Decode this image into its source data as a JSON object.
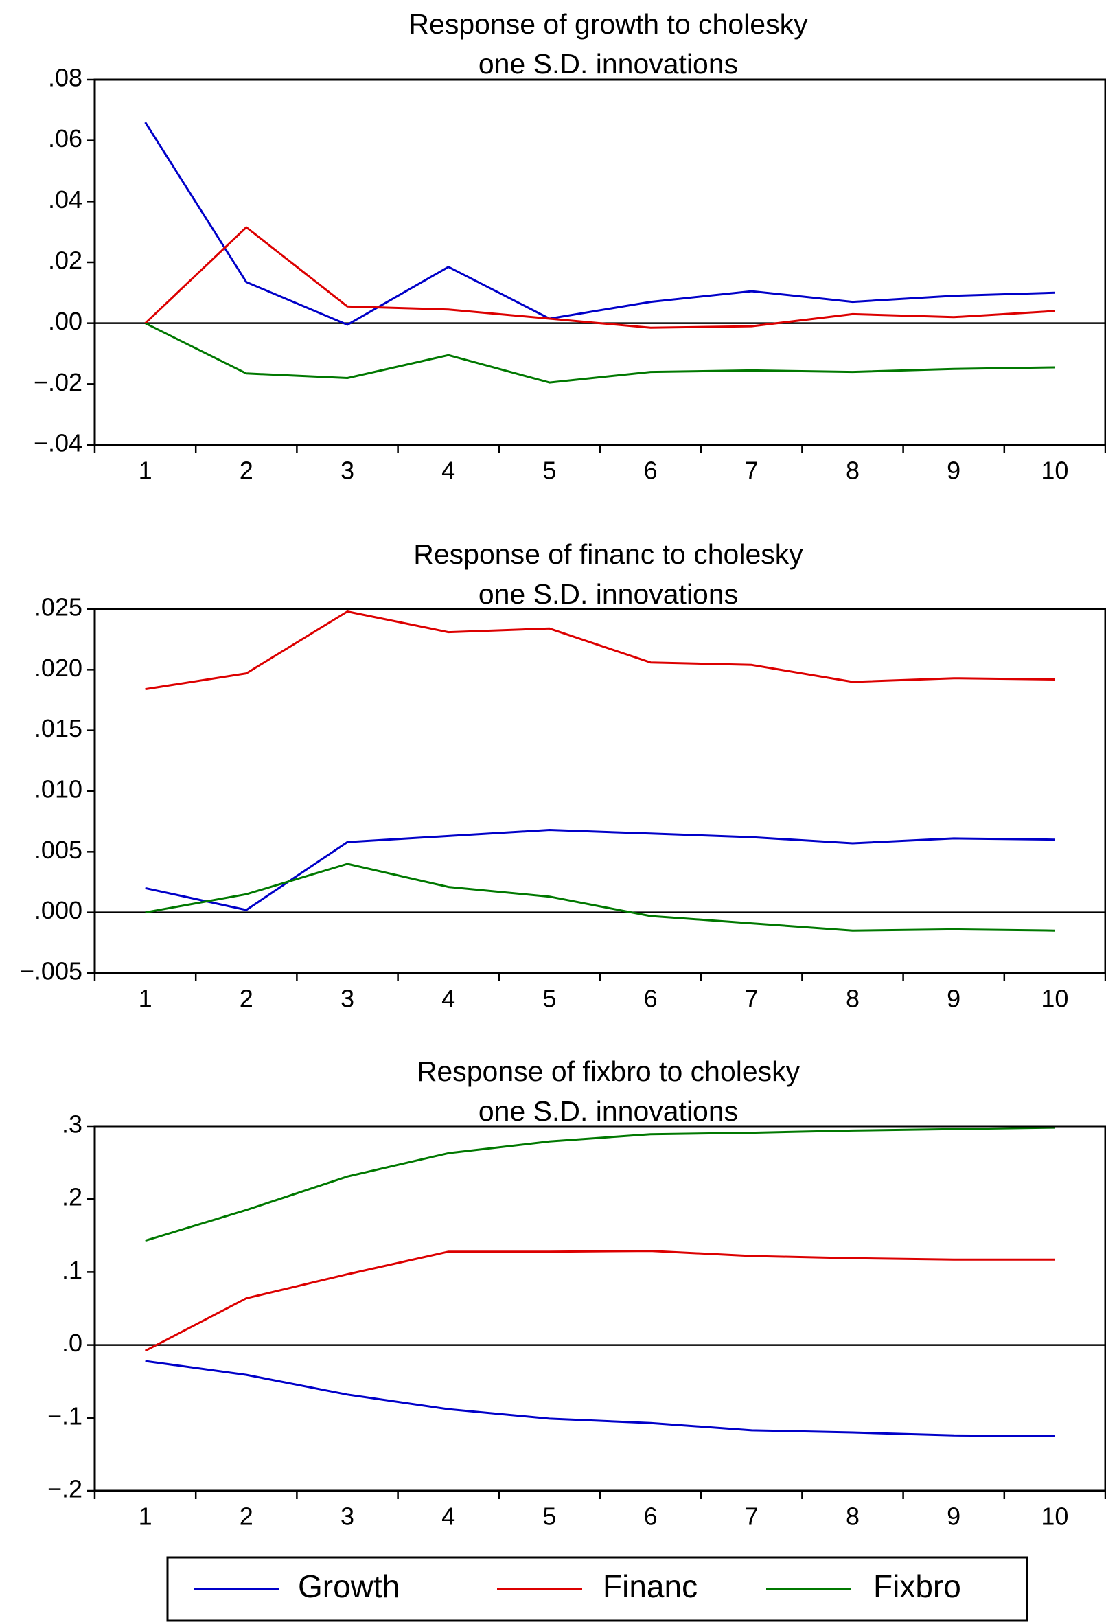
{
  "colors": {
    "Growth": "#0000c8",
    "Financ": "#dc0000",
    "Fixbro": "#007800",
    "axis": "#000000"
  },
  "legend": {
    "placement": "bottom",
    "entries": [
      "Growth",
      "Financ",
      "Fixbro"
    ]
  },
  "chart_data": [
    {
      "type": "line",
      "title_lines": [
        "Response of growth to cholesky",
        "one S.D. innovations"
      ],
      "x": [
        1,
        2,
        3,
        4,
        5,
        6,
        7,
        8,
        9,
        10
      ],
      "ylim": [
        -0.04,
        0.08
      ],
      "yticks": [
        -0.04,
        -0.02,
        0.0,
        0.02,
        0.04,
        0.06,
        0.08
      ],
      "ytick_labels": [
        "−.04",
        "−.02",
        ".00",
        ".02",
        ".04",
        ".06",
        ".08"
      ],
      "zero_line": true,
      "series": [
        {
          "name": "Growth",
          "values": [
            0.066,
            0.0135,
            -0.0005,
            0.0185,
            0.0015,
            0.007,
            0.0105,
            0.007,
            0.009,
            0.01
          ]
        },
        {
          "name": "Financ",
          "values": [
            0.0,
            0.0315,
            0.0055,
            0.0045,
            0.0015,
            -0.0015,
            -0.001,
            0.003,
            0.002,
            0.004
          ]
        },
        {
          "name": "Fixbro",
          "values": [
            0.0,
            -0.0165,
            -0.018,
            -0.0105,
            -0.0195,
            -0.016,
            -0.0155,
            -0.016,
            -0.015,
            -0.0145
          ]
        }
      ]
    },
    {
      "type": "line",
      "title_lines": [
        "Response of financ to cholesky",
        "one S.D. innovations"
      ],
      "x": [
        1,
        2,
        3,
        4,
        5,
        6,
        7,
        8,
        9,
        10
      ],
      "ylim": [
        -0.005,
        0.025
      ],
      "yticks": [
        -0.005,
        0.0,
        0.005,
        0.01,
        0.015,
        0.02,
        0.025
      ],
      "ytick_labels": [
        "−.005",
        ".000",
        ".005",
        ".010",
        ".015",
        ".020",
        ".025"
      ],
      "zero_line": true,
      "series": [
        {
          "name": "Growth",
          "values": [
            0.002,
            0.0002,
            0.0058,
            0.0063,
            0.0068,
            0.0065,
            0.0062,
            0.0057,
            0.0061,
            0.006
          ]
        },
        {
          "name": "Financ",
          "values": [
            0.0184,
            0.0197,
            0.0248,
            0.0231,
            0.0234,
            0.0206,
            0.0204,
            0.019,
            0.0193,
            0.0192
          ]
        },
        {
          "name": "Fixbro",
          "values": [
            0.0,
            0.0015,
            0.004,
            0.0021,
            0.0013,
            -0.0003,
            -0.0009,
            -0.0015,
            -0.0014,
            -0.0015
          ]
        }
      ]
    },
    {
      "type": "line",
      "title_lines": [
        "Response of fixbro to cholesky",
        "one S.D. innovations"
      ],
      "x": [
        1,
        2,
        3,
        4,
        5,
        6,
        7,
        8,
        9,
        10
      ],
      "ylim": [
        -0.2,
        0.3
      ],
      "yticks": [
        -0.2,
        -0.1,
        0.0,
        0.1,
        0.2,
        0.3
      ],
      "ytick_labels": [
        "−.2",
        "−.1",
        ".0",
        ".1",
        ".2",
        ".3"
      ],
      "zero_line": true,
      "series": [
        {
          "name": "Growth",
          "values": [
            -0.022,
            -0.041,
            -0.068,
            -0.088,
            -0.101,
            -0.107,
            -0.117,
            -0.12,
            -0.124,
            -0.125
          ]
        },
        {
          "name": "Financ",
          "values": [
            -0.008,
            0.064,
            0.097,
            0.128,
            0.128,
            0.129,
            0.122,
            0.119,
            0.117,
            0.117
          ]
        },
        {
          "name": "Fixbro",
          "values": [
            0.143,
            0.185,
            0.231,
            0.263,
            0.279,
            0.289,
            0.291,
            0.294,
            0.296,
            0.298
          ]
        }
      ]
    }
  ]
}
